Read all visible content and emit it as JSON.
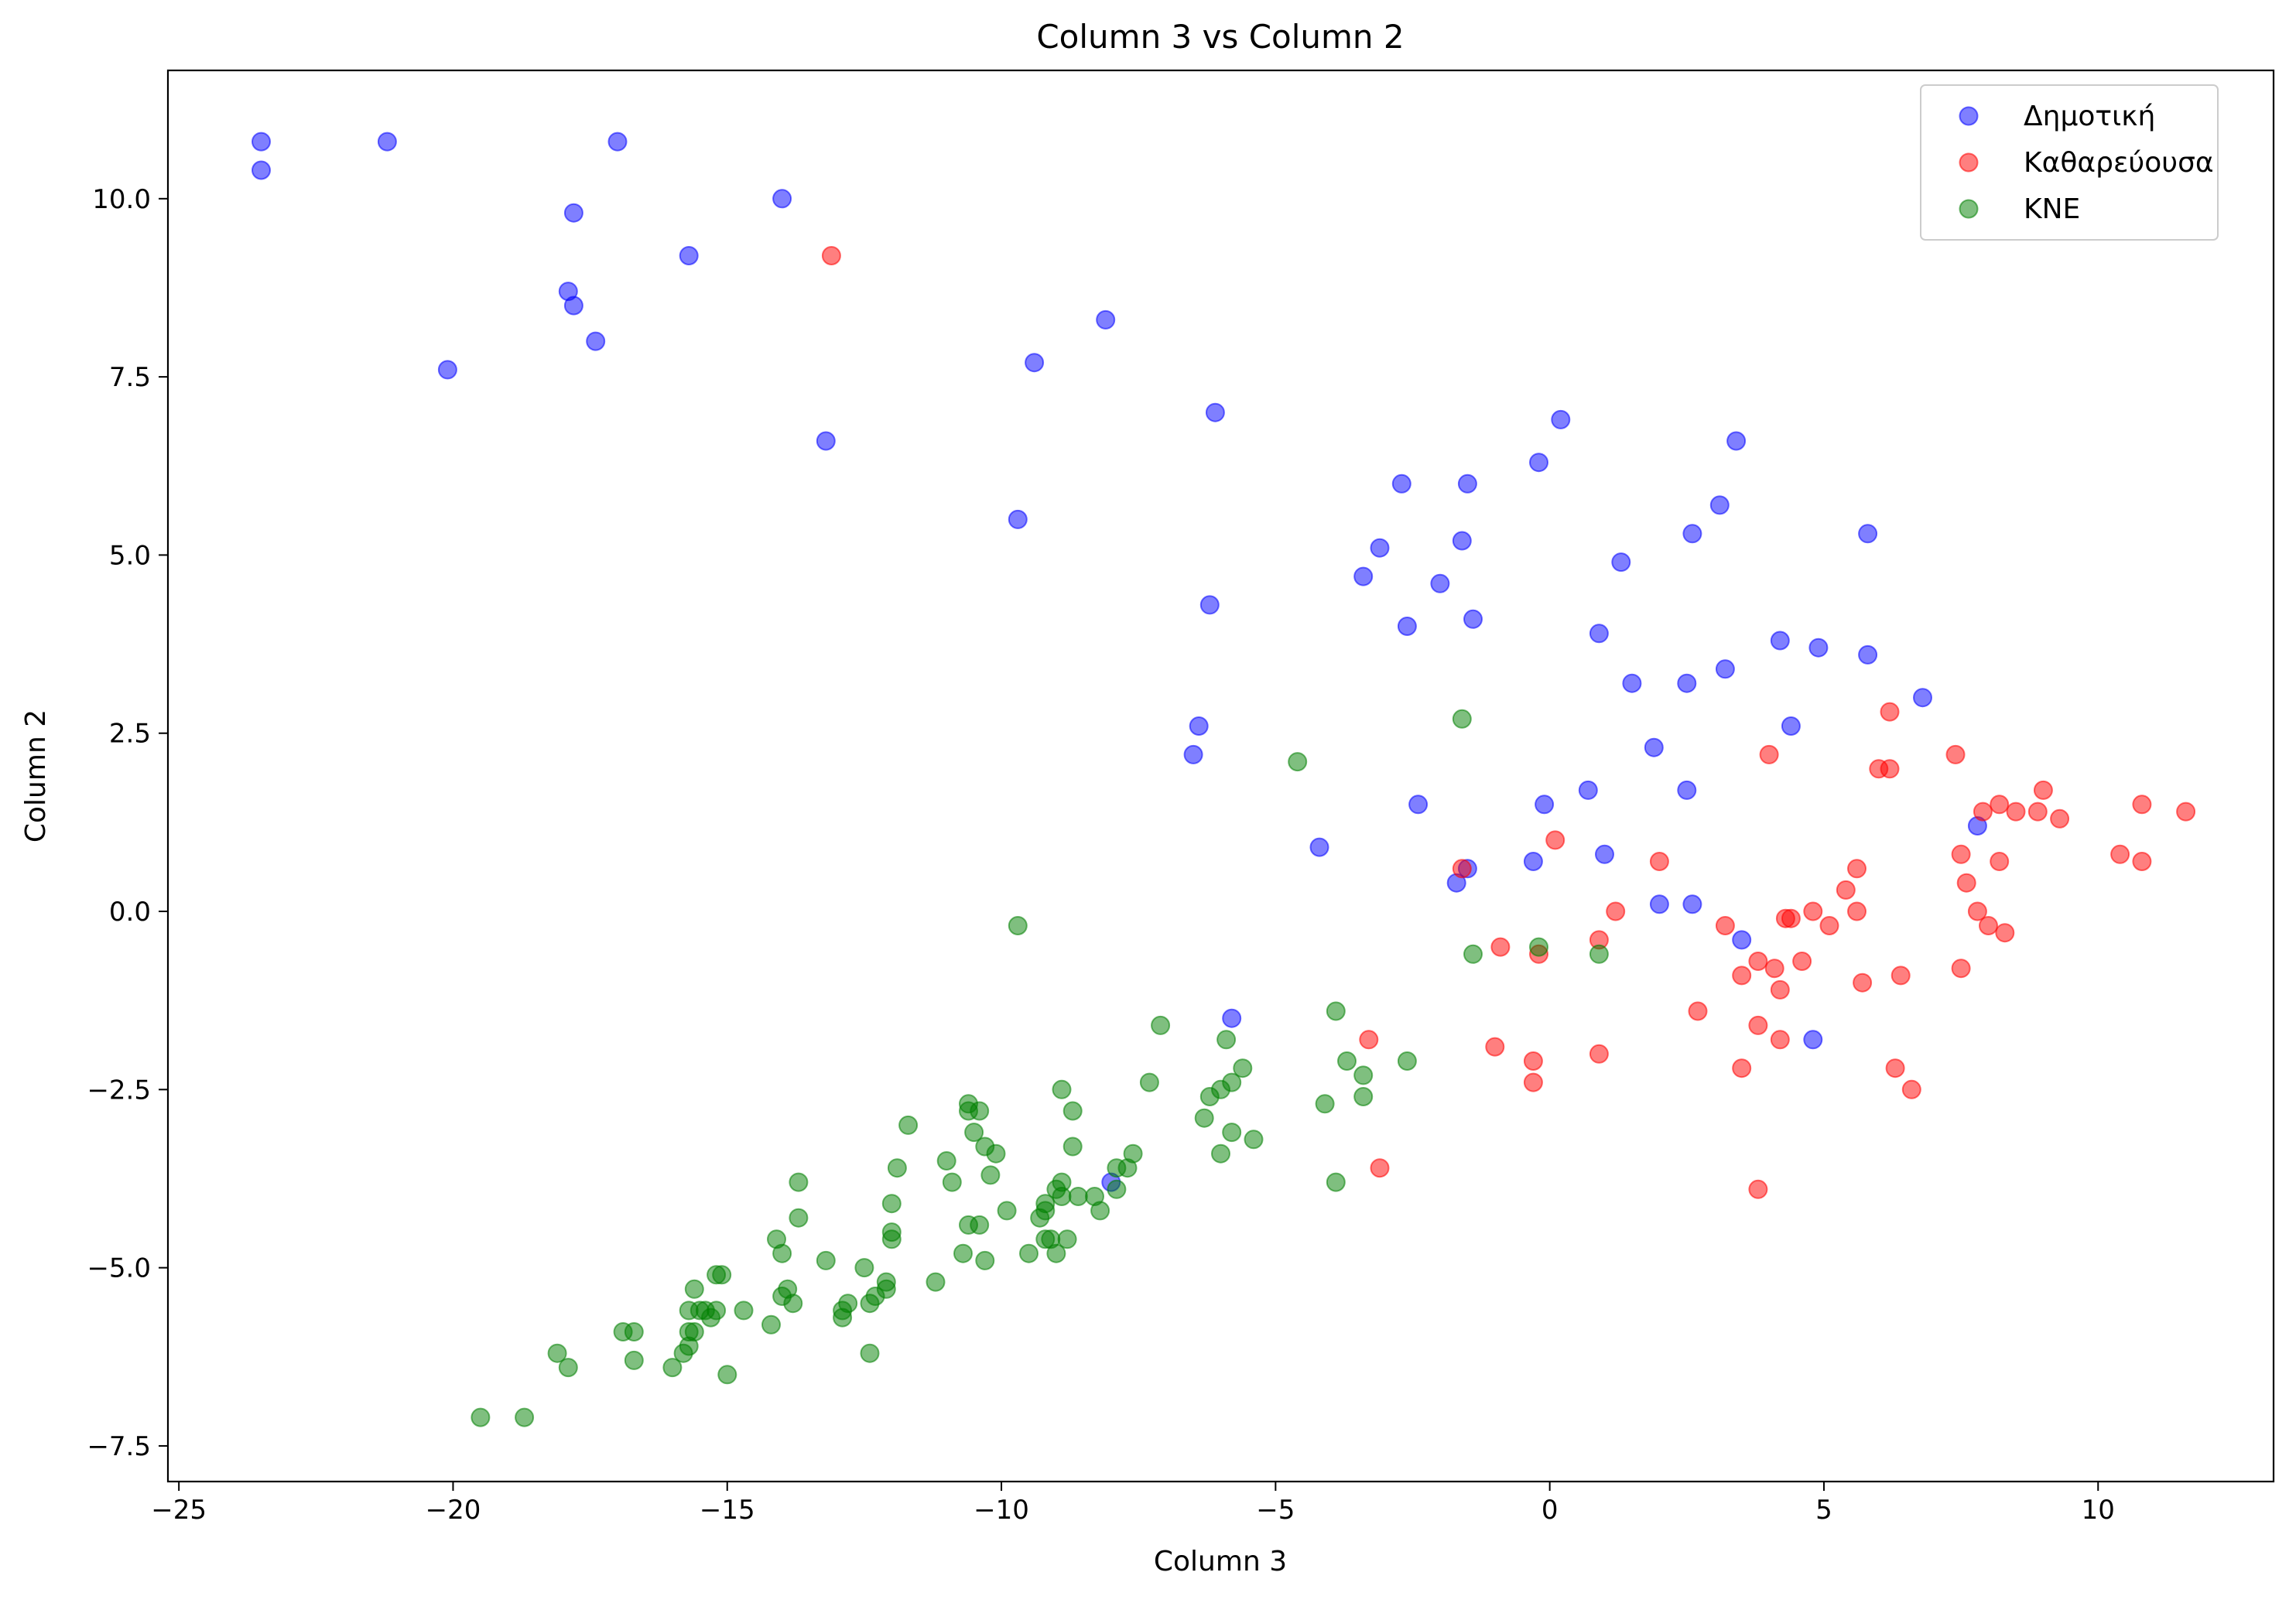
{
  "chart_data": {
    "type": "scatter",
    "title": "Column 3 vs Column 2",
    "xlabel": "Column 3",
    "ylabel": "Column 2",
    "xlim": [
      -25.2,
      13.2
    ],
    "ylim": [
      -8,
      11.8
    ],
    "xticks": [
      -25,
      -20,
      -15,
      -10,
      -5,
      0,
      5,
      10
    ],
    "xtick_labels": [
      "−25",
      "−20",
      "−15",
      "−10",
      "−5",
      "0",
      "5",
      "10"
    ],
    "yticks": [
      -7.5,
      -5,
      -2.5,
      0,
      2.5,
      5,
      7.5,
      10
    ],
    "ytick_labels": [
      "−7.5",
      "−5.0",
      "−2.5",
      "0.0",
      "2.5",
      "5.0",
      "7.5",
      "10.0"
    ],
    "grid": false,
    "legend_position": "top-right",
    "series": [
      {
        "name": "Δημοτική",
        "color": "#0000ff",
        "x": [
          -23.5,
          -23.5,
          -21.2,
          -17.0,
          -14.0,
          -17.8,
          -15.7,
          -17.9,
          -17.8,
          -17.4,
          -20.1,
          -13.2,
          -8.1,
          -9.4,
          -6.1,
          -9.7,
          0.2,
          3.4,
          -0.2,
          -2.7,
          -1.5,
          3.1,
          2.6,
          5.8,
          -3.1,
          -1.6,
          1.3,
          -3.4,
          -2.0,
          -6.2,
          -1.4,
          -2.6,
          0.9,
          4.2,
          4.9,
          5.8,
          1.5,
          2.5,
          3.2,
          6.8,
          -6.4,
          4.4,
          1.9,
          -6.5,
          0.7,
          2.5,
          -2.4,
          -0.1,
          7.8,
          -4.2,
          1.0,
          -0.3,
          -1.5,
          -1.7,
          2.0,
          2.6,
          3.5,
          -5.8,
          4.8,
          -8.0
        ],
        "y": [
          10.8,
          10.4,
          10.8,
          10.8,
          10.0,
          9.8,
          9.2,
          8.7,
          8.5,
          8.0,
          7.6,
          6.6,
          8.3,
          7.7,
          7.0,
          5.5,
          6.9,
          6.6,
          6.3,
          6.0,
          6.0,
          5.7,
          5.3,
          5.3,
          5.1,
          5.2,
          4.9,
          4.7,
          4.6,
          4.3,
          4.1,
          4.0,
          3.9,
          3.8,
          3.7,
          3.6,
          3.2,
          3.2,
          3.4,
          3.0,
          2.6,
          2.6,
          2.3,
          2.2,
          1.7,
          1.7,
          1.5,
          1.5,
          1.2,
          0.9,
          0.8,
          0.7,
          0.6,
          0.4,
          0.1,
          0.1,
          -0.4,
          -1.5,
          -1.8,
          -3.8
        ]
      },
      {
        "name": "Καθαρεύουσα",
        "color": "#ff0000",
        "x": [
          -13.1,
          6.2,
          4.0,
          7.4,
          6.0,
          6.2,
          8.2,
          9.0,
          7.9,
          8.5,
          8.9,
          9.3,
          10.8,
          11.6,
          10.4,
          10.8,
          7.5,
          7.6,
          8.2,
          7.8,
          8.0,
          8.3,
          7.5,
          0.1,
          2.0,
          5.6,
          5.4,
          4.8,
          4.3,
          4.4,
          5.1,
          5.6,
          3.2,
          1.2,
          0.9,
          -0.2,
          -0.9,
          -1.6,
          3.8,
          4.1,
          4.6,
          3.5,
          4.2,
          5.7,
          6.4,
          2.7,
          3.8,
          4.2,
          -1.0,
          0.9,
          -0.3,
          6.3,
          -0.3,
          3.5,
          6.6,
          -3.3,
          -3.1,
          3.8
        ],
        "y": [
          9.2,
          2.8,
          2.2,
          2.2,
          2.0,
          2.0,
          1.5,
          1.7,
          1.4,
          1.4,
          1.4,
          1.3,
          1.5,
          1.4,
          0.8,
          0.7,
          0.8,
          0.4,
          0.7,
          0.0,
          -0.2,
          -0.3,
          -0.8,
          1.0,
          0.7,
          0.6,
          0.3,
          0.0,
          -0.1,
          -0.1,
          -0.2,
          0.0,
          -0.2,
          0.0,
          -0.4,
          -0.6,
          -0.5,
          0.6,
          -0.7,
          -0.8,
          -0.7,
          -0.9,
          -1.1,
          -1.0,
          -0.9,
          -1.4,
          -1.6,
          -1.8,
          -1.9,
          -2.0,
          -2.1,
          -2.2,
          -2.4,
          -2.2,
          -2.5,
          -1.8,
          -3.6,
          -3.9
        ]
      },
      {
        "name": "KNE",
        "color": "#008000",
        "x": [
          -1.6,
          -4.6,
          -9.7,
          -0.2,
          0.9,
          -1.4,
          -3.9,
          -4.1,
          -3.7,
          -3.4,
          -2.6,
          -5.9,
          -5.6,
          -5.8,
          -6.0,
          -6.2,
          -6.3,
          -5.4,
          -5.8,
          -6.0,
          -7.1,
          -7.3,
          -7.6,
          -7.7,
          -7.9,
          -7.9,
          -8.2,
          -8.3,
          -8.6,
          -8.7,
          -8.9,
          -8.9,
          -8.9,
          -9.2,
          -9.2,
          -9.3,
          -9.1,
          -9.2,
          -9.0,
          -8.8,
          -9.0,
          -9.5,
          -9.9,
          -10.1,
          -10.3,
          -10.2,
          -10.3,
          -10.6,
          -10.4,
          -10.5,
          -10.4,
          -10.6,
          -10.7,
          -10.9,
          -11.0,
          -10.6,
          -11.2,
          -11.7,
          -11.9,
          -12.0,
          -12.0,
          -12.0,
          -12.1,
          -12.1,
          -12.3,
          -12.4,
          -12.5,
          -12.4,
          -12.8,
          -12.9,
          -12.9,
          -13.2,
          -13.7,
          -13.7,
          -13.8,
          -13.9,
          -14.0,
          -14.0,
          -14.1,
          -14.2,
          -14.7,
          -15.1,
          -15.2,
          -15.2,
          -15.3,
          -15.4,
          -15.5,
          -15.6,
          -15.6,
          -15.7,
          -15.7,
          -15.7,
          -15.8,
          -16.0,
          -16.7,
          -16.7,
          -16.9,
          -17.9,
          -18.1,
          -18.7,
          -19.5,
          -15.0,
          -3.9,
          -3.4,
          -8.7
        ],
        "y": [
          2.7,
          2.1,
          -0.2,
          -0.5,
          -0.6,
          -0.6,
          -1.4,
          -2.7,
          -2.1,
          -2.3,
          -2.1,
          -1.8,
          -2.2,
          -2.4,
          -2.5,
          -2.6,
          -2.9,
          -3.2,
          -3.1,
          -3.4,
          -1.6,
          -2.4,
          -3.4,
          -3.6,
          -3.6,
          -3.9,
          -4.2,
          -4.0,
          -4.0,
          -3.3,
          -2.5,
          -3.8,
          -4.0,
          -4.1,
          -4.2,
          -4.3,
          -4.6,
          -4.6,
          -4.8,
          -4.6,
          -3.9,
          -4.8,
          -4.2,
          -3.4,
          -3.3,
          -3.7,
          -4.9,
          -2.7,
          -2.8,
          -3.1,
          -4.4,
          -4.4,
          -4.8,
          -3.8,
          -3.5,
          -2.8,
          -5.2,
          -3.0,
          -3.6,
          -4.1,
          -4.5,
          -4.6,
          -5.2,
          -5.3,
          -5.4,
          -5.5,
          -5.0,
          -6.2,
          -5.5,
          -5.6,
          -5.7,
          -4.9,
          -3.8,
          -4.3,
          -5.5,
          -5.3,
          -5.4,
          -4.8,
          -4.6,
          -5.8,
          -5.6,
          -5.1,
          -5.1,
          -5.6,
          -5.7,
          -5.6,
          -5.6,
          -5.3,
          -5.9,
          -5.6,
          -5.9,
          -6.1,
          -6.2,
          -6.4,
          -6.3,
          -5.9,
          -5.9,
          -6.4,
          -6.2,
          -7.1,
          -7.1,
          -6.5,
          -3.8,
          -2.6,
          -2.8
        ]
      }
    ]
  }
}
